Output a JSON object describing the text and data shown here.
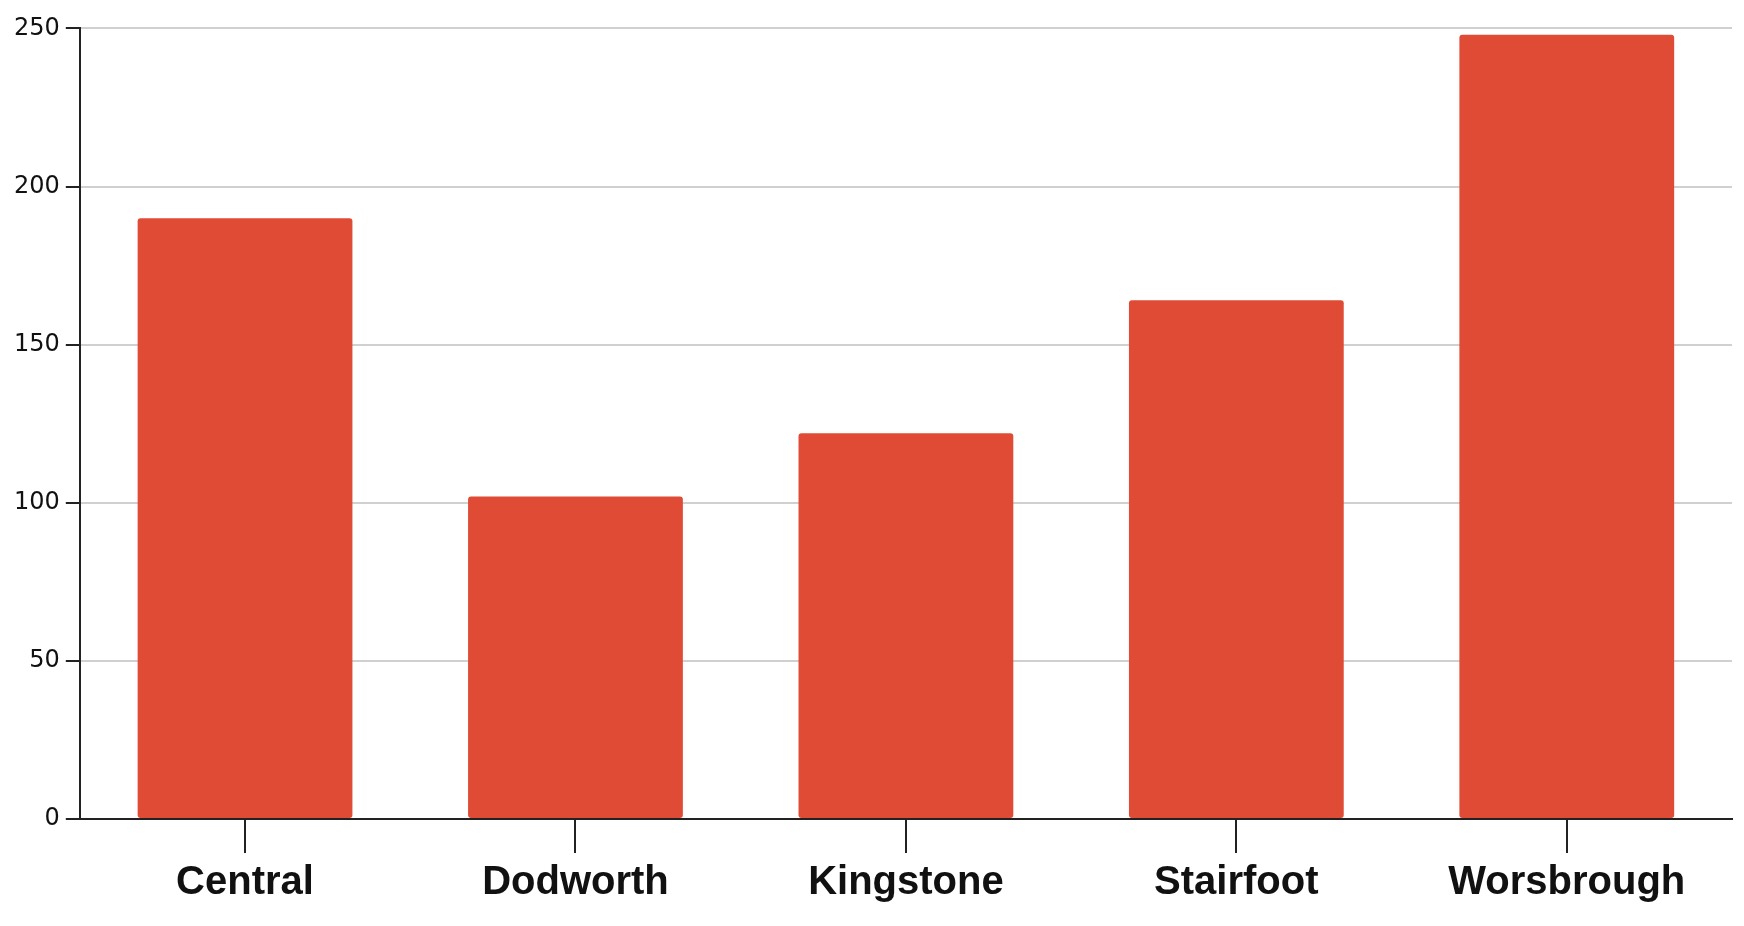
{
  "chart_data": {
    "type": "bar",
    "categories": [
      "Central",
      "Dodworth",
      "Kingstone",
      "Stairfoot",
      "Worsbrough"
    ],
    "values": [
      190,
      102,
      122,
      164,
      248
    ],
    "color": "#e04b36",
    "ylim": [
      0,
      250
    ],
    "yticks": [
      0,
      50,
      100,
      150,
      200,
      250
    ],
    "grid": "y"
  }
}
